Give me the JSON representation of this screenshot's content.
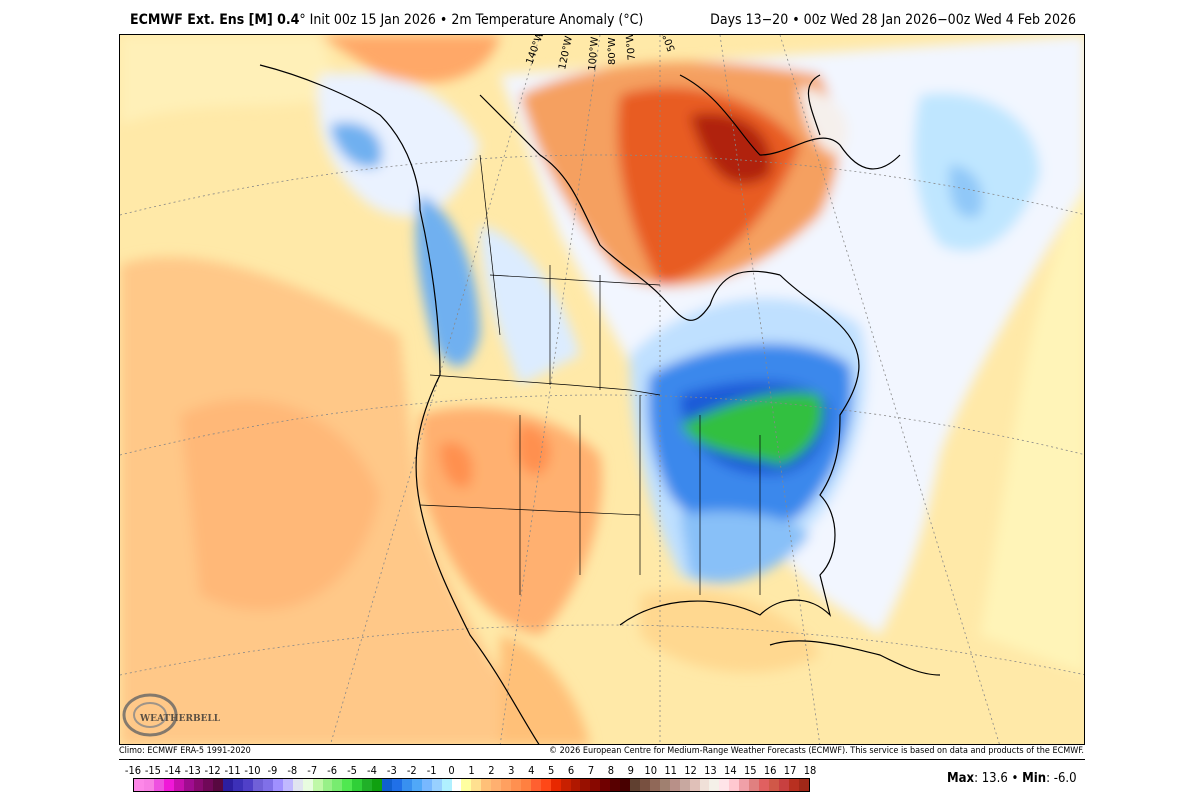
{
  "header": {
    "model": "ECMWF Ext. Ens [M] 0.4",
    "degree": "°",
    "init": " Init 00z 15 Jan 2026 • 2m Temperature Anomaly (°C)",
    "valid": "Days 13−20 • 00z Wed 28 Jan 2026−00z Wed 4 Feb 2026"
  },
  "map": {
    "longitude_labels": [
      "140°W",
      "120°W",
      "100°W",
      "80°W",
      "70°W",
      "50°W"
    ],
    "logo_text": "WEATHERBELL"
  },
  "footer": {
    "climo": "Climo: ECMWF ERA-5 1991-2020",
    "copyright": "© 2026 European Centre for Medium-Range Weather Forecasts (ECMWF). This service is based on data and products of the ECMWF."
  },
  "colorbar": {
    "labels": [
      "-16",
      "-15",
      "-14",
      "-13",
      "-12",
      "-11",
      "-10",
      "-9",
      "-8",
      "-7",
      "-6",
      "-5",
      "-4",
      "-3",
      "-2",
      "-1",
      "0",
      "1",
      "2",
      "3",
      "4",
      "5",
      "6",
      "7",
      "8",
      "9",
      "10",
      "11",
      "12",
      "13",
      "14",
      "15",
      "16",
      "17",
      "18"
    ],
    "colors": [
      "#fd88e8",
      "#f880e4",
      "#ee50e0",
      "#f018d8",
      "#c810b0",
      "#a00c90",
      "#880a70",
      "#700858",
      "#580840",
      "#2c1ea0",
      "#3c30b8",
      "#5040c8",
      "#7060d8",
      "#8070e8",
      "#a090ff",
      "#c0b8ff",
      "#e0e4f0",
      "#e8fce0",
      "#c0f8a8",
      "#98f088",
      "#78ec70",
      "#50e850",
      "#30d038",
      "#20b028",
      "#10a010",
      "#1060d0",
      "#2070e8",
      "#3890f0",
      "#50a8f8",
      "#78b8ff",
      "#98d0ff",
      "#b0f0ff",
      "#ffffff",
      "#ffffa0",
      "#ffe090",
      "#ffc078",
      "#ffb070",
      "#ffa060",
      "#ff9050",
      "#ff8040",
      "#ff6030",
      "#ff4818",
      "#e82800",
      "#c82000",
      "#b01800",
      "#981000",
      "#880800",
      "#700000",
      "#580000",
      "#480000",
      "#604030",
      "#785040",
      "#906858",
      "#a08070",
      "#b89088",
      "#c8a8a0",
      "#e0c0b8",
      "#f0e0d8",
      "#f4f0e8",
      "#ffe4e8",
      "#ffc8d0",
      "#f0a0a8",
      "#e08080",
      "#e06060",
      "#d05848",
      "#c84040",
      "#b83020",
      "#a02818"
    ]
  },
  "stats": {
    "max_label": "Max",
    "max_value": ": 13.6 • ",
    "min_label": "Min",
    "min_value": ": -6.0"
  }
}
